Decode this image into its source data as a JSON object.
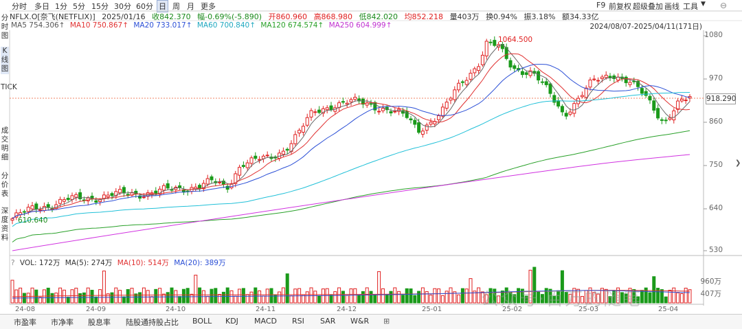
{
  "toolbar": {
    "timeframes": [
      "分时",
      "多日",
      "1分",
      "5分",
      "15分",
      "30分",
      "60分",
      "日",
      "周",
      "月",
      "更多"
    ],
    "active_timeframe": "日",
    "right_items": [
      "F9",
      "前复权",
      "超级叠加",
      "画线",
      "工具"
    ]
  },
  "quote": {
    "symbol": "NFLX.O[奈飞(NETFLIX)]",
    "date": "2025/01/16",
    "close": "收842.370",
    "change": "幅-0.69%(-5.890)",
    "open": "开860.960",
    "high": "高868.980",
    "low": "低842.020",
    "avg": "均852.218",
    "volume": "量403万",
    "turnover": "换0.94%",
    "amplitude": "振3.18%",
    "amount": "额34.33亿"
  },
  "ma": {
    "ma5": "MA5 754.306↑",
    "ma10": "MA10 750.867↑",
    "ma20": "MA20 733.017↑",
    "ma60": "MA60 700.840↑",
    "ma120": "MA120 674.574↑",
    "ma250": "MA250 604.999↑"
  },
  "date_range": "2024/08/07-2025/04/11(171日)",
  "left_panel": [
    "分时图",
    "K线图",
    "TICK",
    "成交明细",
    "分价表",
    "深度资料"
  ],
  "price_axis": [
    "1080",
    "970",
    "860",
    "750",
    "640",
    "530"
  ],
  "current_price": "918.290",
  "annotations": {
    "high_label": "1064.500",
    "low_label": "610.640"
  },
  "volume": {
    "vol": "VOL: 172万",
    "ma5": "MA(5): 274万",
    "ma10": "MA(10): 514万",
    "ma20": "MA(20): 389万",
    "axis": [
      "960万",
      "407万"
    ]
  },
  "date_axis": [
    "24-08",
    "24-09",
    "24-10",
    "24-11",
    "24-12",
    "25-01",
    "25-02",
    "25-03",
    "25-04"
  ],
  "bottom_tabs": [
    "市盈率",
    "市净率",
    "股息率",
    "陆股通持股占比",
    "BOLL",
    "KDJ",
    "MACD",
    "RSI",
    "SAR",
    "W&R",
    "⊞"
  ],
  "watermark": "公众号·百万的随笔",
  "colors": {
    "up": "#e02020",
    "down": "#1a9a1a",
    "ma5": "#666666",
    "ma10": "#e03030",
    "ma20": "#2b4fd6",
    "ma60": "#20c0d8",
    "ma120": "#28a028",
    "ma250": "#d030e0"
  }
}
